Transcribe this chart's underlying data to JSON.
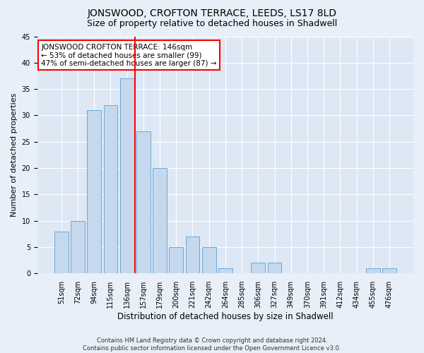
{
  "title": "JONSWOOD, CROFTON TERRACE, LEEDS, LS17 8LD",
  "subtitle": "Size of property relative to detached houses in Shadwell",
  "xlabel": "Distribution of detached houses by size in Shadwell",
  "ylabel": "Number of detached properties",
  "footer_line1": "Contains HM Land Registry data © Crown copyright and database right 2024.",
  "footer_line2": "Contains public sector information licensed under the Open Government Licence v3.0.",
  "categories": [
    "51sqm",
    "72sqm",
    "94sqm",
    "115sqm",
    "136sqm",
    "157sqm",
    "179sqm",
    "200sqm",
    "221sqm",
    "242sqm",
    "264sqm",
    "285sqm",
    "306sqm",
    "327sqm",
    "349sqm",
    "370sqm",
    "391sqm",
    "412sqm",
    "434sqm",
    "455sqm",
    "476sqm"
  ],
  "values": [
    8,
    10,
    31,
    32,
    37,
    27,
    20,
    5,
    7,
    5,
    1,
    0,
    2,
    2,
    0,
    0,
    0,
    0,
    0,
    1,
    1
  ],
  "bar_color": "#c5d8ed",
  "bar_edge_color": "#6aaad4",
  "vline_x": 4.5,
  "vline_color": "red",
  "annotation_text": "JONSWOOD CROFTON TERRACE: 146sqm\n← 53% of detached houses are smaller (99)\n47% of semi-detached houses are larger (87) →",
  "annotation_box_color": "white",
  "annotation_box_edge_color": "red",
  "ylim": [
    0,
    45
  ],
  "yticks": [
    0,
    5,
    10,
    15,
    20,
    25,
    30,
    35,
    40,
    45
  ],
  "background_color": "#e8eff8",
  "plot_background_color": "#dde8f4",
  "grid_color": "white",
  "title_fontsize": 10,
  "subtitle_fontsize": 9,
  "tick_fontsize": 7,
  "ylabel_fontsize": 8,
  "xlabel_fontsize": 8.5,
  "annotation_fontsize": 7.5,
  "footer_fontsize": 6
}
